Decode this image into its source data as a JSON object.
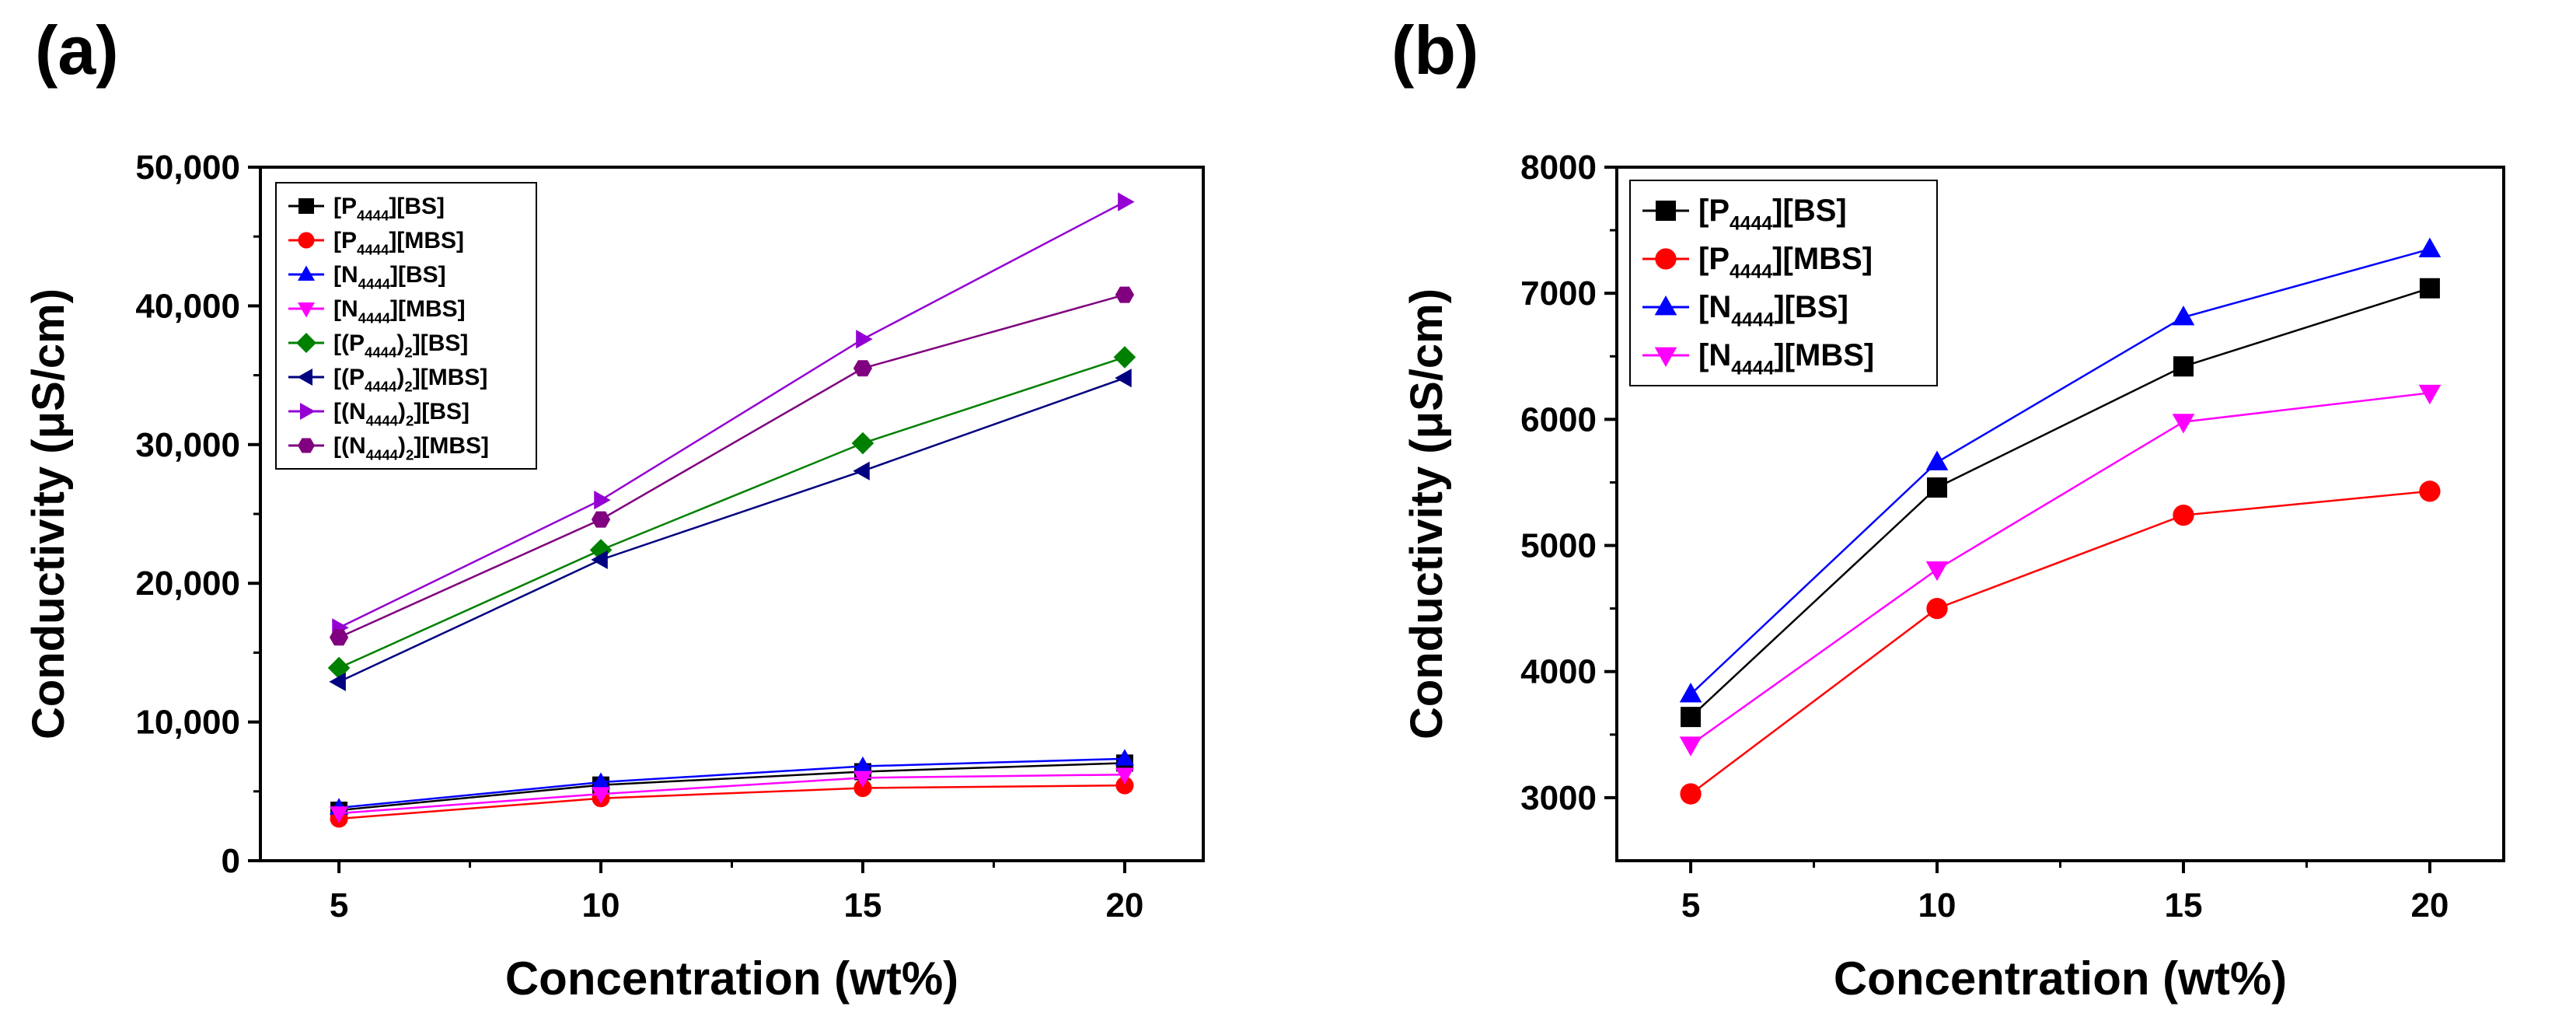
{
  "chart_data": [
    {
      "panel_label": "(a)",
      "type": "line",
      "xlabel": "Concentration (wt%)",
      "ylabel": "Conductivity (μS/cm)",
      "x": [
        5,
        10,
        15,
        20
      ],
      "xlim": [
        3.5,
        21.5
      ],
      "ylim": [
        0,
        50000
      ],
      "xticks": [
        5,
        10,
        15,
        20
      ],
      "yticks": [
        0,
        10000,
        20000,
        30000,
        40000,
        50000
      ],
      "ytick_labels": [
        "0",
        "10,000",
        "20,000",
        "30,000",
        "40,000",
        "50,000"
      ],
      "legend_position": "top-left",
      "series": [
        {
          "name": "[P4444][BS]",
          "cation": "P",
          "sub": "4444",
          "pre": "[",
          "paren": false,
          "anion": "[BS]",
          "marker": "square",
          "color": "#000000",
          "values": [
            3640,
            5460,
            6420,
            7040
          ]
        },
        {
          "name": "[P4444][MBS]",
          "cation": "P",
          "sub": "4444",
          "pre": "[",
          "paren": false,
          "anion": "[MBS]",
          "marker": "circle",
          "color": "#ff0000",
          "values": [
            3030,
            4500,
            5240,
            5430
          ]
        },
        {
          "name": "[N4444][BS]",
          "cation": "N",
          "sub": "4444",
          "pre": "[",
          "paren": false,
          "anion": "[BS]",
          "marker": "triangle-up",
          "color": "#0000ff",
          "values": [
            3820,
            5660,
            6810,
            7350
          ]
        },
        {
          "name": "[N4444][MBS]",
          "cation": "N",
          "sub": "4444",
          "pre": "[",
          "paren": false,
          "anion": "[MBS]",
          "marker": "triangle-down",
          "color": "#ff00ff",
          "values": [
            3420,
            4810,
            5980,
            6210
          ]
        },
        {
          "name": "[(P4444)2][BS]",
          "cation": "P",
          "sub": "4444",
          "pre": "[(",
          "paren": true,
          "anion": "[BS]",
          "marker": "diamond",
          "color": "#008000",
          "values": [
            13900,
            22400,
            30100,
            36300
          ]
        },
        {
          "name": "[(P4444)2][MBS]",
          "cation": "P",
          "sub": "4444",
          "pre": "[(",
          "paren": true,
          "anion": "[MBS]",
          "marker": "triangle-left",
          "color": "#000080",
          "values": [
            12900,
            21700,
            28100,
            34800
          ]
        },
        {
          "name": "[(N4444)2][BS]",
          "cation": "N",
          "sub": "4444",
          "pre": "[(",
          "paren": true,
          "anion": "[BS]",
          "marker": "triangle-right",
          "color": "#9400d3",
          "values": [
            16800,
            26000,
            37600,
            47500
          ]
        },
        {
          "name": "[(N4444)2][MBS]",
          "cation": "N",
          "sub": "4444",
          "pre": "[(",
          "paren": true,
          "anion": "[MBS]",
          "marker": "hexagon",
          "color": "#800080",
          "values": [
            16100,
            24600,
            35500,
            40800
          ]
        }
      ]
    },
    {
      "panel_label": "(b)",
      "type": "line",
      "xlabel": "Concentration (wt%)",
      "ylabel": "Conductivity (μS/cm)",
      "x": [
        5,
        10,
        15,
        20
      ],
      "xlim": [
        3.5,
        21.5
      ],
      "ylim": [
        2500,
        8000
      ],
      "xticks": [
        5,
        10,
        15,
        20
      ],
      "yticks": [
        3000,
        4000,
        5000,
        6000,
        7000,
        8000
      ],
      "ytick_labels": [
        "3000",
        "4000",
        "5000",
        "6000",
        "7000",
        "8000"
      ],
      "legend_position": "top-left",
      "series": [
        {
          "name": "[P4444][BS]",
          "cation": "P",
          "sub": "4444",
          "pre": "[",
          "paren": false,
          "anion": "[BS]",
          "marker": "square",
          "color": "#000000",
          "values": [
            3640,
            5460,
            6420,
            7040
          ]
        },
        {
          "name": "[P4444][MBS]",
          "cation": "P",
          "sub": "4444",
          "pre": "[",
          "paren": false,
          "anion": "[MBS]",
          "marker": "circle",
          "color": "#ff0000",
          "values": [
            3030,
            4500,
            5240,
            5430
          ]
        },
        {
          "name": "[N4444][BS]",
          "cation": "N",
          "sub": "4444",
          "pre": "[",
          "paren": false,
          "anion": "[BS]",
          "marker": "triangle-up",
          "color": "#0000ff",
          "values": [
            3820,
            5660,
            6810,
            7350
          ]
        },
        {
          "name": "[N4444][MBS]",
          "cation": "N",
          "sub": "4444",
          "pre": "[",
          "paren": false,
          "anion": "[MBS]",
          "marker": "triangle-down",
          "color": "#ff00ff",
          "values": [
            3420,
            4810,
            5980,
            6210
          ]
        }
      ]
    }
  ]
}
